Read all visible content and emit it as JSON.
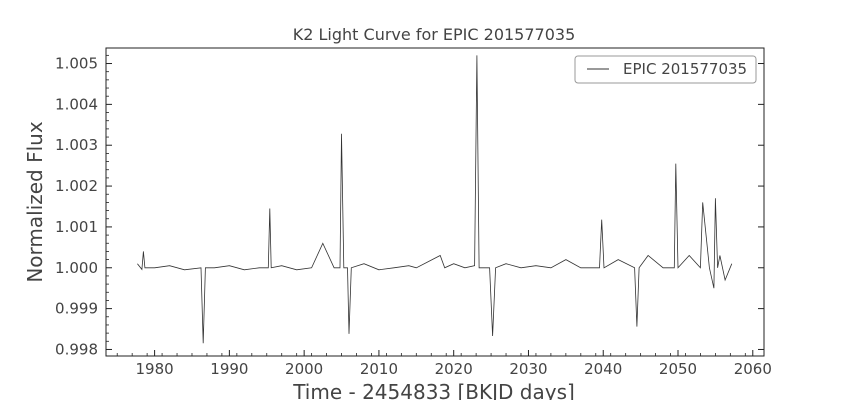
{
  "chart_data": {
    "type": "line",
    "title": "K2 Light Curve for EPIC 201577035",
    "xlabel": "Time - 2454833 [BKJD days]",
    "ylabel": "Normalized Flux",
    "xlim": [
      1973.5,
      2061.5
    ],
    "ylim": [
      0.99784,
      1.00538
    ],
    "x_ticks": [
      1980,
      1990,
      2000,
      2010,
      2020,
      2030,
      2040,
      2050,
      2060
    ],
    "x_tick_labels": [
      "1980",
      "1990",
      "2000",
      "2010",
      "2020",
      "2030",
      "2040",
      "2050",
      "2060"
    ],
    "y_ticks": [
      0.998,
      0.999,
      1.0,
      1.001,
      1.002,
      1.003,
      1.004,
      1.005
    ],
    "y_tick_labels": [
      "0.998",
      "0.999",
      "1.000",
      "1.001",
      "1.002",
      "1.003",
      "1.004",
      "1.005"
    ],
    "legend_position": "top-right",
    "grid": false,
    "line_color": "#333333",
    "series": [
      {
        "name": "EPIC 201577035",
        "x": [
          1977.7,
          1978.3,
          1978.5,
          1978.7,
          1980.0,
          1982.0,
          1984.0,
          1986.2,
          1986.5,
          1986.8,
          1988.0,
          1990.0,
          1992.0,
          1994.0,
          1995.2,
          1995.4,
          1995.6,
          1997.0,
          1999.0,
          2001.0,
          2002.5,
          2004.0,
          2004.8,
          2005.0,
          2005.3,
          2005.8,
          2006.0,
          2006.3,
          2008.0,
          2010.0,
          2012.0,
          2014.0,
          2015.0,
          2018.2,
          2018.8,
          2020.0,
          2021.5,
          2022.8,
          2023.1,
          2023.4,
          2024.8,
          2025.2,
          2025.6,
          2027.0,
          2029.0,
          2031.0,
          2033.0,
          2035.0,
          2037.0,
          2039.5,
          2039.8,
          2040.1,
          2042.0,
          2044.2,
          2044.5,
          2044.8,
          2046.0,
          2048.0,
          2049.5,
          2049.7,
          2050.0,
          2051.5,
          2053.0,
          2053.3,
          2054.2,
          2054.8,
          2055.0,
          2055.3,
          2055.6,
          2056.3,
          2057.2
        ],
        "y": [
          1.0001,
          0.99996,
          1.0004,
          1.0,
          1.0,
          1.00005,
          0.99995,
          1.0,
          0.99815,
          1.0,
          1.0,
          1.00005,
          0.99995,
          1.0,
          1.0,
          1.00145,
          1.0,
          1.00005,
          0.99995,
          1.0,
          1.0006,
          1.0,
          1.0,
          1.00328,
          1.0,
          1.0,
          0.99838,
          1.0,
          1.0001,
          0.99995,
          1.0,
          1.00005,
          1.0,
          1.0003,
          1.0,
          1.0001,
          1.0,
          1.00005,
          1.0052,
          1.0,
          1.0,
          0.99833,
          1.0,
          1.0001,
          1.0,
          1.00005,
          1.0,
          1.0002,
          1.0,
          1.0,
          1.00118,
          1.0,
          1.0002,
          1.0,
          0.99856,
          1.0,
          1.0003,
          1.0,
          1.0,
          1.00255,
          1.0,
          1.0003,
          1.0,
          1.0016,
          1.0,
          0.9995,
          1.0017,
          1.0,
          1.0003,
          0.9997,
          1.0001
        ]
      }
    ]
  }
}
